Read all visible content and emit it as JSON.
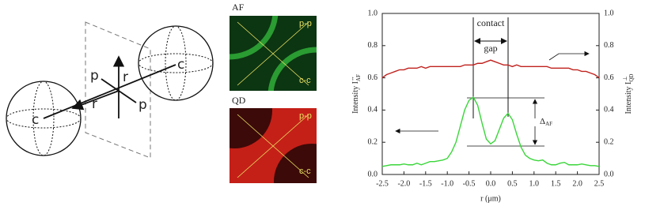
{
  "diagram": {
    "point_labels": [
      "c",
      "c"
    ],
    "axis_labels": [
      "p",
      "r",
      "r",
      "p"
    ]
  },
  "images": [
    {
      "title": "AF",
      "labels": [
        "p-p",
        "c-c"
      ]
    },
    {
      "title": "QD",
      "labels": [
        "p-p",
        "c-c"
      ]
    }
  ],
  "chart_data": {
    "type": "line",
    "xlabel": "r (μm)",
    "ylabel": "Intensity I",
    "ylabel_sub": "AF",
    "ylabel_sup": "↔",
    "y2label": "Intensity I",
    "y2label_sub": "QD",
    "y2label_sup": "⊥",
    "annotation_top": "contact",
    "annotation_bottom": "gap",
    "delta": "Δ",
    "delta_sub": "AF",
    "x": [
      -2.5,
      -2.4,
      -2.3,
      -2.2,
      -2.1,
      -2.0,
      -1.9,
      -1.8,
      -1.7,
      -1.6,
      -1.5,
      -1.4,
      -1.3,
      -1.2,
      -1.1,
      -1.0,
      -0.9,
      -0.8,
      -0.7,
      -0.6,
      -0.5,
      -0.4,
      -0.3,
      -0.2,
      -0.1,
      0,
      0.1,
      0.2,
      0.3,
      0.4,
      0.5,
      0.6,
      0.7,
      0.8,
      0.9,
      1.0,
      1.1,
      1.2,
      1.3,
      1.4,
      1.5,
      1.6,
      1.7,
      1.8,
      1.9,
      2.0,
      2.1,
      2.2,
      2.3,
      2.4,
      2.5
    ],
    "series": [
      {
        "name": "AF",
        "color": "#3ad63a",
        "values": [
          0.05,
          0.055,
          0.06,
          0.06,
          0.06,
          0.065,
          0.06,
          0.06,
          0.07,
          0.06,
          0.07,
          0.08,
          0.08,
          0.085,
          0.09,
          0.1,
          0.14,
          0.2,
          0.3,
          0.4,
          0.46,
          0.48,
          0.43,
          0.32,
          0.22,
          0.19,
          0.21,
          0.28,
          0.35,
          0.38,
          0.34,
          0.25,
          0.17,
          0.12,
          0.1,
          0.09,
          0.085,
          0.09,
          0.07,
          0.06,
          0.06,
          0.07,
          0.075,
          0.06,
          0.06,
          0.06,
          0.065,
          0.06,
          0.055,
          0.055,
          0.05
        ]
      },
      {
        "name": "QD",
        "color": "#c0221e",
        "axis": "y2",
        "values": [
          0.6,
          0.62,
          0.63,
          0.64,
          0.65,
          0.65,
          0.66,
          0.66,
          0.66,
          0.67,
          0.66,
          0.67,
          0.67,
          0.67,
          0.67,
          0.67,
          0.67,
          0.67,
          0.67,
          0.68,
          0.68,
          0.68,
          0.69,
          0.69,
          0.7,
          0.71,
          0.7,
          0.69,
          0.68,
          0.68,
          0.67,
          0.68,
          0.67,
          0.67,
          0.67,
          0.67,
          0.67,
          0.67,
          0.67,
          0.66,
          0.66,
          0.66,
          0.66,
          0.66,
          0.65,
          0.65,
          0.64,
          0.64,
          0.63,
          0.62,
          0.6
        ]
      }
    ],
    "xlim": [
      -2.5,
      2.5
    ],
    "xticks": [
      {
        "value": -2.5,
        "label": "-2.5"
      },
      {
        "value": -2,
        "label": "-2.0"
      },
      {
        "value": -1.5,
        "label": "-1.5"
      },
      {
        "value": -1,
        "label": "-1.0"
      },
      {
        "value": -0.5,
        "label": "-0.5"
      },
      {
        "value": 0,
        "label": "0.0"
      },
      {
        "value": 0.5,
        "label": "0.5"
      },
      {
        "value": 1,
        "label": "1.0"
      },
      {
        "value": 1.5,
        "label": "1.5"
      },
      {
        "value": 2,
        "label": "2.0"
      },
      {
        "value": 2.5,
        "label": "2.5"
      }
    ],
    "ylim": [
      0,
      1
    ],
    "yticks": [
      {
        "value": 0,
        "label": "0.0"
      },
      0.2,
      0.4,
      0.6,
      0.8,
      {
        "value": 1,
        "label": "1.0"
      }
    ],
    "y2lim": [
      0,
      1
    ],
    "y2ticks": [
      {
        "value": 0,
        "label": "0.0"
      },
      0.2,
      0.4,
      0.6,
      0.8,
      {
        "value": 1,
        "label": "1.0"
      }
    ]
  }
}
